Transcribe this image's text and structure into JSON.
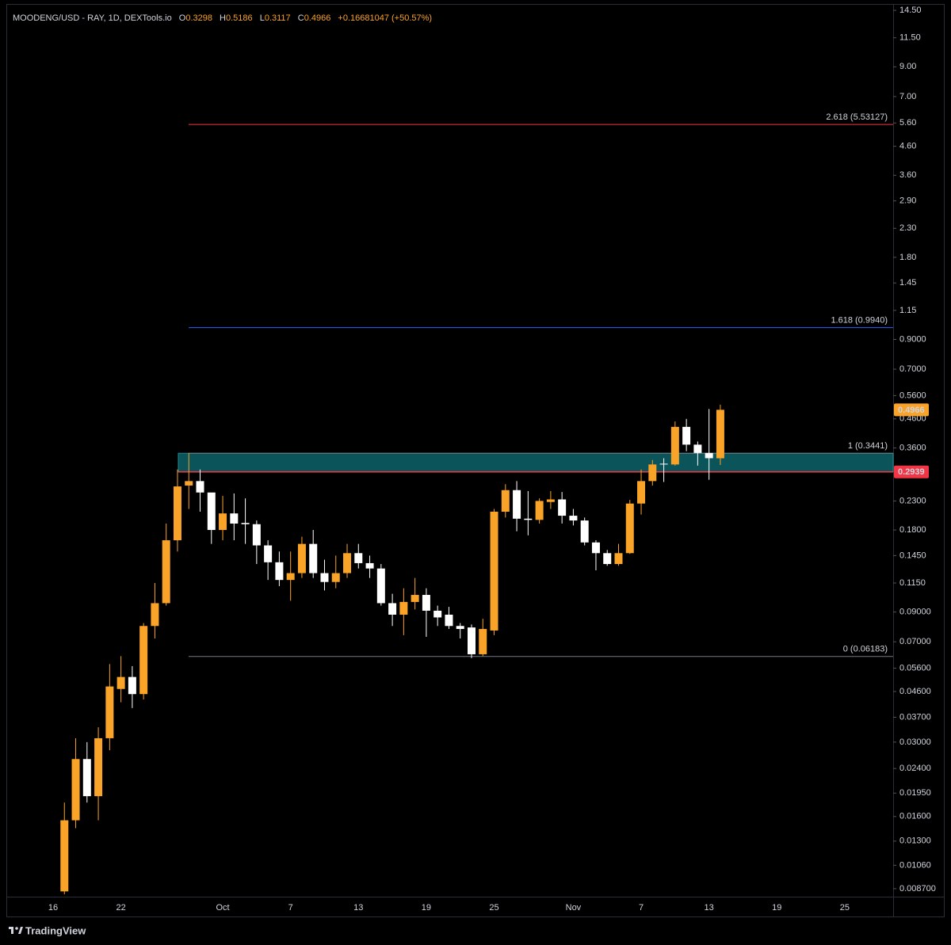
{
  "chart_data": {
    "type": "candlestick",
    "header": {
      "symbol": "MOODENG/USD - RAY, 1D, DEXTools.io",
      "fields": [
        {
          "key": "O",
          "value": 0.3298
        },
        {
          "key": "H",
          "value": 0.5186
        },
        {
          "key": "L",
          "value": 0.3117
        },
        {
          "key": "C",
          "value": 0.4966
        }
      ],
      "change": "+0.16681047 (+50.57%)"
    },
    "categories": [
      "16",
      null,
      null,
      null,
      null,
      null,
      "22",
      null,
      null,
      null,
      null,
      null,
      null,
      null,
      null,
      "Oct",
      null,
      null,
      null,
      null,
      null,
      "7",
      null,
      null,
      null,
      null,
      null,
      "13",
      null,
      null,
      null,
      null,
      null,
      "19",
      null,
      null,
      null,
      null,
      null,
      "25",
      null,
      null,
      null,
      null,
      null,
      null,
      "Nov",
      null,
      null,
      null,
      null,
      null,
      "7",
      null,
      null,
      null,
      null,
      null,
      "13",
      null,
      null,
      null,
      null,
      null,
      "19",
      null,
      null,
      null,
      null,
      null,
      "25",
      null,
      null,
      null,
      null
    ],
    "open": [
      null,
      0.0085,
      0.0155,
      0.026,
      0.019,
      0.031,
      0.047,
      0.052,
      0.045,
      0.08,
      0.097,
      0.165,
      0.262,
      0.272,
      0.247,
      0.18,
      0.207,
      0.191,
      0.189,
      0.158,
      0.137,
      0.118,
      0.125,
      0.16,
      0.125,
      0.116,
      0.125,
      0.148,
      0.136,
      0.13,
      0.097,
      0.088,
      0.098,
      0.104,
      0.091,
      0.088,
      0.08,
      0.079,
      0.063,
      0.077,
      0.21,
      0.252,
      0.198,
      0.196,
      0.228,
      0.233,
      0.203,
      0.195,
      0.162,
      0.148,
      0.135,
      0.148,
      0.225,
      0.272,
      0.315,
      0.313,
      0.43,
      0.37,
      0.345,
      0.3298,
      null,
      null,
      null,
      null,
      null,
      null,
      null,
      null,
      null,
      null,
      null,
      null,
      null,
      null,
      null
    ],
    "high": [
      null,
      0.018,
      0.031,
      0.03,
      0.034,
      0.058,
      0.062,
      0.057,
      0.082,
      0.115,
      0.19,
      0.3,
      0.345,
      0.3,
      0.245,
      0.24,
      0.245,
      0.235,
      0.195,
      0.165,
      0.15,
      0.15,
      0.17,
      0.18,
      0.14,
      0.145,
      0.16,
      0.16,
      0.145,
      0.135,
      0.105,
      0.11,
      0.12,
      0.11,
      0.095,
      0.094,
      0.082,
      0.081,
      0.085,
      0.215,
      0.265,
      0.272,
      0.25,
      0.235,
      0.25,
      0.248,
      0.215,
      0.2,
      0.165,
      0.152,
      0.16,
      0.232,
      0.3,
      0.325,
      0.33,
      0.45,
      0.46,
      0.38,
      0.5,
      0.5186,
      null,
      null,
      null,
      null,
      null,
      null,
      null,
      null,
      null,
      null,
      null,
      null,
      null,
      null,
      null
    ],
    "low": [
      null,
      0.0083,
      0.0145,
      0.018,
      0.0155,
      0.028,
      0.042,
      0.04,
      0.043,
      0.072,
      0.095,
      0.15,
      0.215,
      0.21,
      0.16,
      0.165,
      0.165,
      0.16,
      0.135,
      0.118,
      0.112,
      0.099,
      0.12,
      0.12,
      0.108,
      0.11,
      0.12,
      0.13,
      0.12,
      0.095,
      0.08,
      0.074,
      0.092,
      0.073,
      0.08,
      0.078,
      0.072,
      0.061,
      0.062,
      0.074,
      0.2,
      0.178,
      0.172,
      0.19,
      0.215,
      0.19,
      0.187,
      0.158,
      0.128,
      0.133,
      0.133,
      0.147,
      0.205,
      0.262,
      0.27,
      0.31,
      0.35,
      0.31,
      0.275,
      0.3117,
      null,
      null,
      null,
      null,
      null,
      null,
      null,
      null,
      null,
      null,
      null,
      null,
      null,
      null,
      null
    ],
    "close": [
      null,
      0.0155,
      0.026,
      0.019,
      0.031,
      0.048,
      0.052,
      0.045,
      0.08,
      0.097,
      0.165,
      0.26,
      0.272,
      0.247,
      0.18,
      0.207,
      0.19,
      0.189,
      0.158,
      0.137,
      0.118,
      0.125,
      0.16,
      0.125,
      0.116,
      0.125,
      0.148,
      0.136,
      0.13,
      0.097,
      0.088,
      0.098,
      0.104,
      0.091,
      0.086,
      0.08,
      0.078,
      0.063,
      0.078,
      0.21,
      0.252,
      0.198,
      0.196,
      0.23,
      0.233,
      0.203,
      0.195,
      0.162,
      0.148,
      0.135,
      0.148,
      0.225,
      0.272,
      0.313,
      0.314,
      0.43,
      0.37,
      0.345,
      0.33,
      0.4966,
      null,
      null,
      null,
      null,
      null,
      null,
      null,
      null,
      null,
      null,
      null,
      null,
      null,
      null,
      null
    ],
    "up_color": "#f9a328",
    "down_color": "#ffffff",
    "log_scale": true,
    "grid": false,
    "ylim": [
      0.00813,
      15.2
    ],
    "yticks": [
      {
        "value": 14.5,
        "label": "14.50"
      },
      {
        "value": 11.5,
        "label": "11.50"
      },
      {
        "value": 9,
        "label": "9.00"
      },
      {
        "value": 7,
        "label": "7.00"
      },
      {
        "value": 5.6,
        "label": "5.60"
      },
      {
        "value": 4.6,
        "label": "4.60"
      },
      {
        "value": 3.6,
        "label": "3.60"
      },
      {
        "value": 2.9,
        "label": "2.90"
      },
      {
        "value": 2.3,
        "label": "2.30"
      },
      {
        "value": 1.8,
        "label": "1.80"
      },
      {
        "value": 1.45,
        "label": "1.45"
      },
      {
        "value": 1.15,
        "label": "1.15"
      },
      {
        "value": 0.9,
        "label": "0.9000"
      },
      {
        "value": 0.7,
        "label": "0.7000"
      },
      {
        "value": 0.56,
        "label": "0.5600"
      },
      {
        "value": 0.46,
        "label": "0.4600"
      },
      {
        "value": 0.36,
        "label": "0.3600"
      },
      {
        "value": 0.23,
        "label": "0.2300"
      },
      {
        "value": 0.18,
        "label": "0.1800"
      },
      {
        "value": 0.145,
        "label": "0.1450"
      },
      {
        "value": 0.115,
        "label": "0.1150"
      },
      {
        "value": 0.09,
        "label": "0.09000"
      },
      {
        "value": 0.07,
        "label": "0.07000"
      },
      {
        "value": 0.056,
        "label": "0.05600"
      },
      {
        "value": 0.046,
        "label": "0.04600"
      },
      {
        "value": 0.037,
        "label": "0.03700"
      },
      {
        "value": 0.03,
        "label": "0.03000"
      },
      {
        "value": 0.024,
        "label": "0.02400"
      },
      {
        "value": 0.0195,
        "label": "0.01950"
      },
      {
        "value": 0.016,
        "label": "0.01600"
      },
      {
        "value": 0.013,
        "label": "0.01300"
      },
      {
        "value": 0.0106,
        "label": "0.01060"
      },
      {
        "value": 0.0087,
        "label": "0.008700"
      }
    ],
    "fib_levels": [
      {
        "value": 5.53127,
        "label": "2.618 (5.53127)",
        "color": "#f23645"
      },
      {
        "value": 0.994,
        "label": "1.618 (0.9940)",
        "color": "#2962ff"
      },
      {
        "value": 0.3441,
        "label": "1 (0.3441)",
        "color": "#787b86"
      },
      {
        "value": 0.06183,
        "label": "0 (0.06183)",
        "color": "#787b86"
      }
    ],
    "zone": {
      "low": 0.2939,
      "high": 0.3441,
      "color": "#0b5459",
      "border": "#1f8a8e"
    },
    "price_line": {
      "value": 0.2939,
      "color": "#f23645"
    },
    "last_price": {
      "value": 0.4966,
      "color": "#f9a328"
    },
    "watermark": "TradingView"
  }
}
